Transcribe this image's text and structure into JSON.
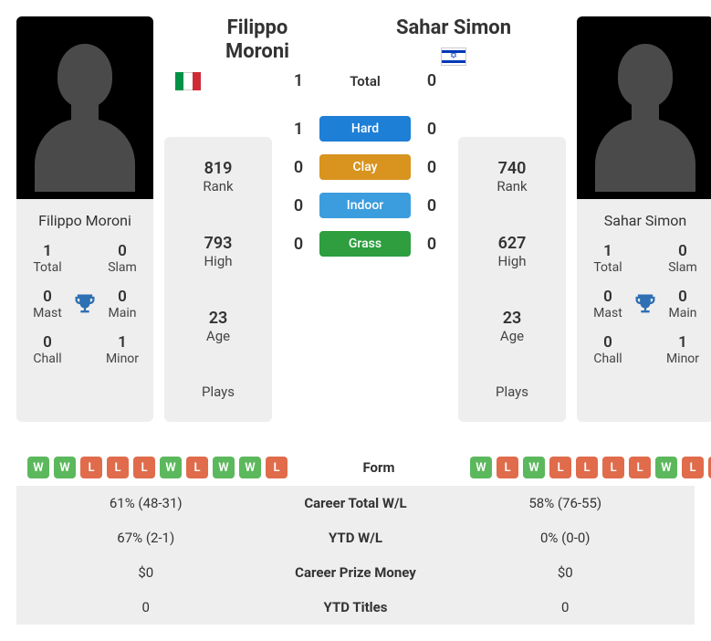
{
  "player1": {
    "name_line1": "Filippo",
    "name_line2": "Moroni",
    "full_name": "Filippo Moroni",
    "flag": "it",
    "rank": "819",
    "rank_label": "Rank",
    "high": "793",
    "high_label": "High",
    "age": "23",
    "age_label": "Age",
    "plays": "",
    "plays_label": "Plays",
    "titles": {
      "total": "1",
      "total_label": "Total",
      "slam": "0",
      "slam_label": "Slam",
      "mast": "0",
      "mast_label": "Mast",
      "main": "0",
      "main_label": "Main",
      "chall": "0",
      "chall_label": "Chall",
      "minor": "1",
      "minor_label": "Minor"
    }
  },
  "player2": {
    "name_line1": "Sahar Simon",
    "name_line2": "",
    "full_name": "Sahar Simon",
    "flag": "il",
    "rank": "740",
    "rank_label": "Rank",
    "high": "627",
    "high_label": "High",
    "age": "23",
    "age_label": "Age",
    "plays": "",
    "plays_label": "Plays",
    "titles": {
      "total": "1",
      "total_label": "Total",
      "slam": "0",
      "slam_label": "Slam",
      "mast": "0",
      "mast_label": "Mast",
      "main": "0",
      "main_label": "Main",
      "chall": "0",
      "chall_label": "Chall",
      "minor": "1",
      "minor_label": "Minor"
    }
  },
  "h2h": {
    "total_label": "Total",
    "surfaces": [
      {
        "label": "Hard",
        "color": "#1e7fd6",
        "p1": "1",
        "p2": "0"
      },
      {
        "label": "Clay",
        "color": "#d8941f",
        "p1": "0",
        "p2": "0"
      },
      {
        "label": "Indoor",
        "color": "#3c9dde",
        "p1": "0",
        "p2": "0"
      },
      {
        "label": "Grass",
        "color": "#2e9e3f",
        "p1": "0",
        "p2": "0"
      }
    ],
    "p1_total": "1",
    "p2_total": "0"
  },
  "form": {
    "label": "Form",
    "p1": [
      "W",
      "W",
      "L",
      "L",
      "L",
      "W",
      "L",
      "W",
      "W",
      "L"
    ],
    "p2": [
      "W",
      "L",
      "W",
      "L",
      "L",
      "L",
      "L",
      "W",
      "L",
      "L"
    ]
  },
  "stats": [
    {
      "label": "Career Total W/L",
      "p1": "61% (48-31)",
      "p2": "58% (76-55)"
    },
    {
      "label": "YTD W/L",
      "p1": "67% (2-1)",
      "p2": "0% (0-0)"
    },
    {
      "label": "Career Prize Money",
      "p1": "$0",
      "p2": "$0"
    },
    {
      "label": "YTD Titles",
      "p1": "0",
      "p2": "0"
    }
  ],
  "colors": {
    "win": "#5cb85c",
    "loss": "#e06c4c",
    "card_bg": "#eeeeee",
    "trophy": "#2f6fb3"
  }
}
